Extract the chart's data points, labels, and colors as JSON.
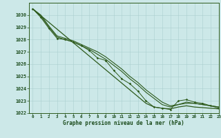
{
  "x": [
    0,
    1,
    2,
    3,
    4,
    5,
    6,
    7,
    8,
    9,
    10,
    11,
    12,
    13,
    14,
    15,
    16,
    17,
    18,
    19,
    20,
    21,
    22,
    23
  ],
  "line_measured": [
    1030.5,
    1029.8,
    1028.9,
    1028.1,
    1028.0,
    1027.8,
    1027.5,
    1027.1,
    1026.5,
    1026.3,
    1025.5,
    1024.8,
    1024.4,
    1023.8,
    1023.0,
    1022.5,
    1022.4,
    1022.3,
    1023.0,
    1023.1,
    1022.9,
    1022.8,
    1022.6,
    1022.4
  ],
  "line_smooth1": [
    1030.5,
    1030.0,
    1029.1,
    1028.3,
    1028.1,
    1027.9,
    1027.6,
    1027.3,
    1027.0,
    1026.6,
    1026.1,
    1025.6,
    1025.0,
    1024.5,
    1023.9,
    1023.4,
    1022.9,
    1022.6,
    1022.7,
    1022.8,
    1022.8,
    1022.7,
    1022.6,
    1022.5
  ],
  "line_smooth2": [
    1030.5,
    1029.9,
    1029.0,
    1028.2,
    1028.0,
    1027.8,
    1027.5,
    1027.2,
    1026.8,
    1026.4,
    1025.9,
    1025.4,
    1024.8,
    1024.3,
    1023.7,
    1023.2,
    1022.7,
    1022.5,
    1022.7,
    1022.9,
    1022.8,
    1022.7,
    1022.6,
    1022.5
  ],
  "line_trend": [
    1030.5,
    1029.95,
    1029.4,
    1028.85,
    1028.3,
    1027.75,
    1027.2,
    1026.65,
    1026.1,
    1025.55,
    1025.0,
    1024.45,
    1023.9,
    1023.35,
    1022.8,
    1022.5,
    1022.4,
    1022.35,
    1022.5,
    1022.6,
    1022.5,
    1022.45,
    1022.4,
    1022.35
  ],
  "ylim": [
    1022,
    1031
  ],
  "xlim": [
    -0.5,
    23
  ],
  "yticks": [
    1022,
    1023,
    1024,
    1025,
    1026,
    1027,
    1028,
    1029,
    1030
  ],
  "xticks": [
    0,
    1,
    2,
    3,
    4,
    5,
    6,
    7,
    8,
    9,
    10,
    11,
    12,
    13,
    14,
    15,
    16,
    17,
    18,
    19,
    20,
    21,
    22,
    23
  ],
  "xlabel": "Graphe pression niveau de la mer (hPa)",
  "line_color": "#2d5a1b",
  "bg_color": "#cce8e8",
  "grid_color": "#aacfcf",
  "text_color": "#1a4a1a"
}
